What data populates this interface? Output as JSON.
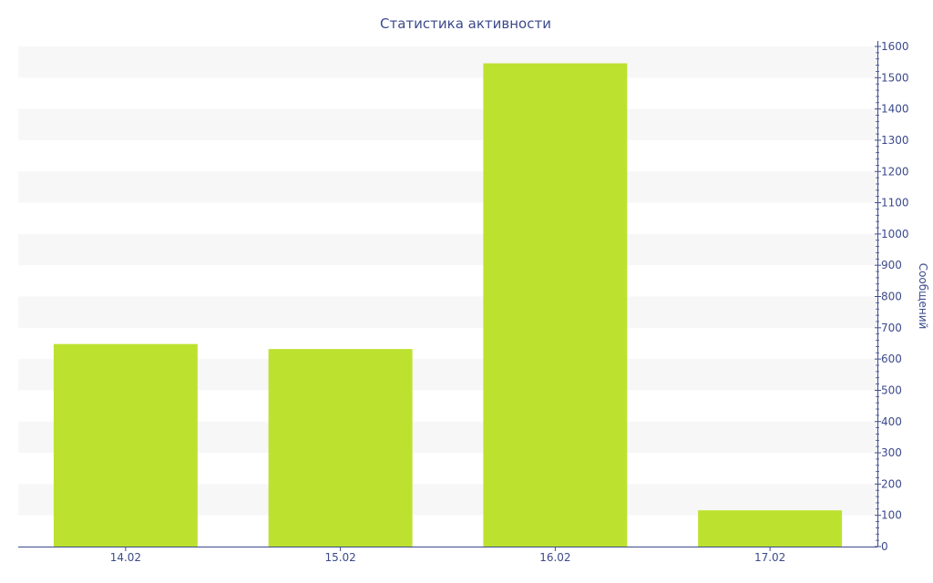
{
  "chart_data": {
    "type": "bar",
    "title": "Статистика активности",
    "categories": [
      "14.02",
      "15.02",
      "16.02",
      "17.02"
    ],
    "values": [
      648,
      632,
      1546,
      116
    ],
    "xlabel": "",
    "ylabel": "Сообщений",
    "ylim": [
      0,
      1600
    ],
    "yticks": [
      0,
      100,
      200,
      300,
      400,
      500,
      600,
      700,
      800,
      900,
      1000,
      1100,
      1200,
      1300,
      1400,
      1500,
      1600
    ],
    "y_axis_side": "right",
    "grid": "alternating horizontal bands",
    "legend": "none",
    "colors": {
      "bar": "#bce22f",
      "band": "#f7f7f7",
      "axis": "#3c4a8c",
      "text": "#3c4a8c"
    }
  }
}
